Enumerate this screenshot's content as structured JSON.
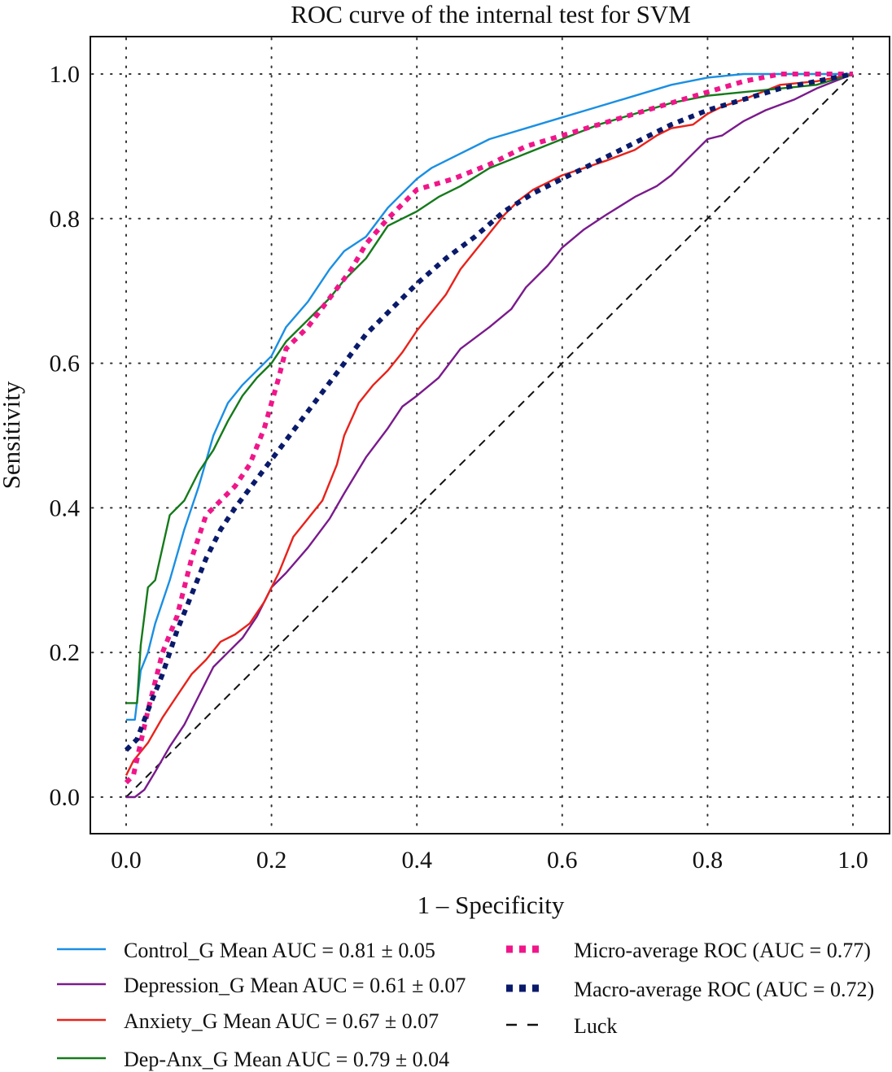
{
  "chart_data": {
    "type": "line",
    "title": "ROC curve of the internal test for SVM",
    "xlabel": "1 – Specificity",
    "ylabel": "Sensitivity",
    "xlim": [
      0,
      1
    ],
    "ylim": [
      0,
      1
    ],
    "xticks": [
      "0.0",
      "0.2",
      "0.4",
      "0.6",
      "0.8",
      "1.0"
    ],
    "yticks": [
      "0.0",
      "0.2",
      "0.4",
      "0.6",
      "0.8",
      "1.0"
    ],
    "grid": true,
    "legend_position": "bottom",
    "series": [
      {
        "name": "Control_G Mean AUC = 0.81 ± 0.05",
        "color": "#1a8fe3",
        "style": "solid",
        "points": [
          [
            0.0,
            0.107
          ],
          [
            0.012,
            0.107
          ],
          [
            0.02,
            0.175
          ],
          [
            0.03,
            0.2
          ],
          [
            0.04,
            0.24
          ],
          [
            0.06,
            0.3
          ],
          [
            0.08,
            0.37
          ],
          [
            0.1,
            0.43
          ],
          [
            0.12,
            0.5
          ],
          [
            0.14,
            0.545
          ],
          [
            0.16,
            0.57
          ],
          [
            0.2,
            0.61
          ],
          [
            0.22,
            0.65
          ],
          [
            0.25,
            0.685
          ],
          [
            0.28,
            0.73
          ],
          [
            0.3,
            0.755
          ],
          [
            0.33,
            0.775
          ],
          [
            0.36,
            0.815
          ],
          [
            0.38,
            0.835
          ],
          [
            0.4,
            0.855
          ],
          [
            0.42,
            0.87
          ],
          [
            0.45,
            0.885
          ],
          [
            0.5,
            0.91
          ],
          [
            0.55,
            0.925
          ],
          [
            0.6,
            0.94
          ],
          [
            0.65,
            0.955
          ],
          [
            0.7,
            0.97
          ],
          [
            0.75,
            0.985
          ],
          [
            0.8,
            0.995
          ],
          [
            0.85,
            1.0
          ],
          [
            0.9,
            1.0
          ],
          [
            1.0,
            1.0
          ]
        ]
      },
      {
        "name": "Depression_G Mean AUC = 0.61 ± 0.07",
        "color": "#7a1a8c",
        "style": "solid",
        "points": [
          [
            0.0,
            0.0
          ],
          [
            0.012,
            0.0
          ],
          [
            0.025,
            0.01
          ],
          [
            0.04,
            0.035
          ],
          [
            0.06,
            0.07
          ],
          [
            0.08,
            0.1
          ],
          [
            0.1,
            0.14
          ],
          [
            0.12,
            0.18
          ],
          [
            0.14,
            0.2
          ],
          [
            0.16,
            0.22
          ],
          [
            0.18,
            0.25
          ],
          [
            0.2,
            0.29
          ],
          [
            0.22,
            0.31
          ],
          [
            0.25,
            0.345
          ],
          [
            0.28,
            0.385
          ],
          [
            0.3,
            0.42
          ],
          [
            0.33,
            0.47
          ],
          [
            0.36,
            0.51
          ],
          [
            0.38,
            0.54
          ],
          [
            0.4,
            0.555
          ],
          [
            0.43,
            0.58
          ],
          [
            0.46,
            0.62
          ],
          [
            0.5,
            0.65
          ],
          [
            0.53,
            0.675
          ],
          [
            0.55,
            0.705
          ],
          [
            0.58,
            0.735
          ],
          [
            0.6,
            0.76
          ],
          [
            0.63,
            0.785
          ],
          [
            0.66,
            0.805
          ],
          [
            0.7,
            0.83
          ],
          [
            0.73,
            0.845
          ],
          [
            0.75,
            0.86
          ],
          [
            0.78,
            0.89
          ],
          [
            0.8,
            0.91
          ],
          [
            0.82,
            0.915
          ],
          [
            0.85,
            0.935
          ],
          [
            0.88,
            0.95
          ],
          [
            0.92,
            0.965
          ],
          [
            0.95,
            0.98
          ],
          [
            1.0,
            1.0
          ]
        ]
      },
      {
        "name": "Anxiety_G Mean AUC = 0.67 ± 0.07",
        "color": "#e8221b",
        "style": "solid",
        "points": [
          [
            0.0,
            0.03
          ],
          [
            0.01,
            0.05
          ],
          [
            0.03,
            0.075
          ],
          [
            0.05,
            0.11
          ],
          [
            0.07,
            0.14
          ],
          [
            0.09,
            0.17
          ],
          [
            0.11,
            0.19
          ],
          [
            0.13,
            0.215
          ],
          [
            0.15,
            0.225
          ],
          [
            0.17,
            0.24
          ],
          [
            0.19,
            0.27
          ],
          [
            0.21,
            0.31
          ],
          [
            0.23,
            0.36
          ],
          [
            0.25,
            0.385
          ],
          [
            0.27,
            0.41
          ],
          [
            0.29,
            0.46
          ],
          [
            0.3,
            0.5
          ],
          [
            0.32,
            0.545
          ],
          [
            0.34,
            0.57
          ],
          [
            0.36,
            0.59
          ],
          [
            0.38,
            0.615
          ],
          [
            0.4,
            0.645
          ],
          [
            0.42,
            0.67
          ],
          [
            0.44,
            0.695
          ],
          [
            0.46,
            0.73
          ],
          [
            0.48,
            0.755
          ],
          [
            0.5,
            0.78
          ],
          [
            0.52,
            0.805
          ],
          [
            0.54,
            0.825
          ],
          [
            0.56,
            0.84
          ],
          [
            0.58,
            0.85
          ],
          [
            0.6,
            0.86
          ],
          [
            0.63,
            0.87
          ],
          [
            0.66,
            0.88
          ],
          [
            0.7,
            0.895
          ],
          [
            0.73,
            0.915
          ],
          [
            0.75,
            0.925
          ],
          [
            0.78,
            0.93
          ],
          [
            0.8,
            0.945
          ],
          [
            0.82,
            0.955
          ],
          [
            0.85,
            0.965
          ],
          [
            0.9,
            0.985
          ],
          [
            0.95,
            0.99
          ],
          [
            1.0,
            1.0
          ]
        ]
      },
      {
        "name": "Dep-Anx_G Mean AUC = 0.79 ± 0.04",
        "color": "#157a1b",
        "style": "solid",
        "points": [
          [
            0.0,
            0.13
          ],
          [
            0.015,
            0.13
          ],
          [
            0.02,
            0.21
          ],
          [
            0.03,
            0.29
          ],
          [
            0.04,
            0.3
          ],
          [
            0.06,
            0.39
          ],
          [
            0.08,
            0.41
          ],
          [
            0.1,
            0.45
          ],
          [
            0.12,
            0.48
          ],
          [
            0.14,
            0.52
          ],
          [
            0.16,
            0.555
          ],
          [
            0.18,
            0.58
          ],
          [
            0.2,
            0.6
          ],
          [
            0.22,
            0.63
          ],
          [
            0.25,
            0.66
          ],
          [
            0.28,
            0.69
          ],
          [
            0.3,
            0.715
          ],
          [
            0.33,
            0.745
          ],
          [
            0.36,
            0.79
          ],
          [
            0.38,
            0.8
          ],
          [
            0.4,
            0.81
          ],
          [
            0.43,
            0.83
          ],
          [
            0.46,
            0.845
          ],
          [
            0.5,
            0.87
          ],
          [
            0.55,
            0.89
          ],
          [
            0.6,
            0.91
          ],
          [
            0.65,
            0.93
          ],
          [
            0.7,
            0.945
          ],
          [
            0.75,
            0.96
          ],
          [
            0.8,
            0.97
          ],
          [
            0.85,
            0.975
          ],
          [
            0.9,
            0.98
          ],
          [
            0.95,
            0.985
          ],
          [
            1.0,
            1.0
          ]
        ]
      },
      {
        "name": "Micro-average ROC (AUC = 0.77)",
        "color": "#f0168a",
        "style": "dotted",
        "points": [
          [
            0.0,
            0.02
          ],
          [
            0.01,
            0.03
          ],
          [
            0.03,
            0.12
          ],
          [
            0.05,
            0.2
          ],
          [
            0.07,
            0.25
          ],
          [
            0.09,
            0.33
          ],
          [
            0.11,
            0.39
          ],
          [
            0.13,
            0.41
          ],
          [
            0.15,
            0.43
          ],
          [
            0.17,
            0.46
          ],
          [
            0.19,
            0.51
          ],
          [
            0.21,
            0.58
          ],
          [
            0.22,
            0.62
          ],
          [
            0.25,
            0.65
          ],
          [
            0.28,
            0.69
          ],
          [
            0.31,
            0.73
          ],
          [
            0.33,
            0.765
          ],
          [
            0.36,
            0.8
          ],
          [
            0.4,
            0.84
          ],
          [
            0.45,
            0.855
          ],
          [
            0.5,
            0.875
          ],
          [
            0.55,
            0.9
          ],
          [
            0.6,
            0.915
          ],
          [
            0.65,
            0.93
          ],
          [
            0.7,
            0.945
          ],
          [
            0.75,
            0.96
          ],
          [
            0.8,
            0.975
          ],
          [
            0.85,
            0.99
          ],
          [
            0.9,
            1.0
          ],
          [
            1.0,
            1.0
          ]
        ]
      },
      {
        "name": "Macro-average ROC (AUC = 0.72)",
        "color": "#0a1a6b",
        "style": "dotted",
        "points": [
          [
            0.0,
            0.065
          ],
          [
            0.015,
            0.08
          ],
          [
            0.03,
            0.12
          ],
          [
            0.05,
            0.17
          ],
          [
            0.07,
            0.23
          ],
          [
            0.09,
            0.28
          ],
          [
            0.11,
            0.33
          ],
          [
            0.13,
            0.37
          ],
          [
            0.15,
            0.4
          ],
          [
            0.18,
            0.44
          ],
          [
            0.21,
            0.48
          ],
          [
            0.24,
            0.52
          ],
          [
            0.27,
            0.56
          ],
          [
            0.3,
            0.6
          ],
          [
            0.33,
            0.64
          ],
          [
            0.36,
            0.67
          ],
          [
            0.4,
            0.71
          ],
          [
            0.44,
            0.745
          ],
          [
            0.48,
            0.775
          ],
          [
            0.52,
            0.81
          ],
          [
            0.56,
            0.835
          ],
          [
            0.6,
            0.855
          ],
          [
            0.65,
            0.88
          ],
          [
            0.7,
            0.905
          ],
          [
            0.75,
            0.93
          ],
          [
            0.8,
            0.95
          ],
          [
            0.85,
            0.965
          ],
          [
            0.9,
            0.98
          ],
          [
            0.95,
            0.99
          ],
          [
            1.0,
            1.0
          ]
        ]
      },
      {
        "name": "Luck",
        "color": "#111111",
        "style": "dashed",
        "points": [
          [
            0.0,
            0.0
          ],
          [
            1.0,
            1.0
          ]
        ]
      }
    ]
  }
}
